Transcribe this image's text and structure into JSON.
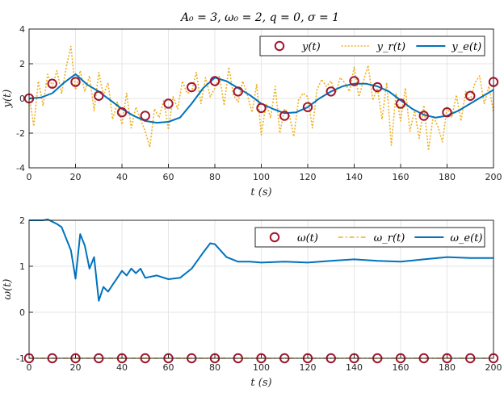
{
  "chart_data": [
    {
      "type": "line",
      "title": "A₀ = 3,  ω₀ = 2,  q = 0,  σ = 1",
      "xlabel": "t (s)",
      "ylabel": "y(t)",
      "xlim": [
        0,
        200
      ],
      "ylim": [
        -4,
        4
      ],
      "xticks": [
        0,
        20,
        40,
        60,
        80,
        100,
        120,
        140,
        160,
        180,
        200
      ],
      "yticks": [
        -4,
        -2,
        0,
        2,
        4
      ],
      "grid": true,
      "legend_position": "top-right",
      "series": [
        {
          "name": "y(t)",
          "style": "markers",
          "color": "#A2142F",
          "x": [
            0,
            10,
            20,
            30,
            40,
            50,
            60,
            70,
            80,
            90,
            100,
            110,
            120,
            130,
            140,
            150,
            160,
            170,
            180,
            190,
            200
          ],
          "y": [
            0.0,
            0.85,
            0.95,
            0.15,
            -0.8,
            -1.0,
            -0.3,
            0.65,
            1.0,
            0.4,
            -0.55,
            -1.0,
            -0.5,
            0.4,
            1.0,
            0.65,
            -0.3,
            -1.0,
            -0.8,
            0.15,
            0.95
          ]
        },
        {
          "name": "y_r(t)",
          "style": "dotted",
          "color": "#EDB120",
          "x": [
            0,
            2,
            4,
            6,
            8,
            10,
            12,
            14,
            16,
            18,
            20,
            22,
            24,
            26,
            28,
            30,
            32,
            34,
            36,
            38,
            40,
            42,
            44,
            46,
            48,
            50,
            52,
            54,
            56,
            58,
            60,
            62,
            64,
            66,
            68,
            70,
            72,
            74,
            76,
            78,
            80,
            82,
            84,
            86,
            88,
            90,
            92,
            94,
            96,
            98,
            100,
            102,
            104,
            106,
            108,
            110,
            112,
            114,
            116,
            118,
            120,
            122,
            124,
            126,
            128,
            130,
            132,
            134,
            136,
            138,
            140,
            142,
            144,
            146,
            148,
            150,
            152,
            154,
            156,
            158,
            160,
            162,
            164,
            166,
            168,
            170,
            172,
            174,
            176,
            178,
            180,
            182,
            184,
            186,
            188,
            190,
            192,
            194,
            196,
            198,
            200
          ],
          "y": [
            0.2,
            -1.6,
            1.0,
            -0.4,
            1.4,
            0.7,
            1.6,
            0.3,
            1.8,
            3.0,
            0.5,
            1.6,
            0.4,
            1.3,
            -0.7,
            1.5,
            0.2,
            0.9,
            -1.2,
            -0.2,
            -1.5,
            0.3,
            -1.7,
            -0.5,
            -1.2,
            -1.9,
            -2.8,
            -0.6,
            -1.1,
            -0.1,
            -1.8,
            0.1,
            -0.6,
            1.0,
            0.3,
            0.4,
            1.5,
            -0.3,
            1.2,
            0.1,
            0.6,
            1.3,
            -0.4,
            1.8,
            0.2,
            -0.2,
            1.0,
            0.2,
            -0.8,
            0.8,
            -2.1,
            -0.3,
            -1.1,
            0.7,
            -2.0,
            -0.6,
            -0.9,
            -2.2,
            -0.1,
            0.3,
            0.1,
            -1.7,
            0.5,
            1.1,
            0.7,
            1.0,
            0.3,
            1.2,
            0.9,
            0.4,
            1.8,
            0.1,
            1.0,
            1.9,
            -0.1,
            0.6,
            -1.2,
            0.9,
            -2.7,
            0.3,
            -1.3,
            0.6,
            -1.9,
            -0.7,
            -2.3,
            -0.4,
            -3.0,
            -1.0,
            -1.6,
            -2.5,
            -0.5,
            -1.1,
            0.2,
            -1.3,
            0.4,
            -0.1,
            0.9,
            1.3,
            -0.3,
            0.7,
            -0.8
          ]
        },
        {
          "name": "y_e(t)",
          "style": "solid",
          "color": "#0072BD",
          "x": [
            0,
            5,
            10,
            15,
            20,
            25,
            30,
            35,
            40,
            45,
            50,
            55,
            60,
            65,
            70,
            75,
            80,
            85,
            90,
            95,
            100,
            105,
            110,
            115,
            120,
            125,
            130,
            135,
            140,
            145,
            150,
            155,
            160,
            165,
            170,
            175,
            180,
            185,
            190,
            195,
            200
          ],
          "y": [
            0.0,
            0.05,
            0.3,
            0.9,
            1.4,
            0.8,
            0.4,
            -0.1,
            -0.6,
            -1.0,
            -1.3,
            -1.4,
            -1.35,
            -1.1,
            -0.3,
            0.6,
            1.2,
            1.0,
            0.6,
            0.2,
            -0.3,
            -0.6,
            -0.85,
            -0.8,
            -0.5,
            0.0,
            0.4,
            0.7,
            0.85,
            0.85,
            0.7,
            0.4,
            -0.1,
            -0.6,
            -0.95,
            -1.1,
            -1.0,
            -0.7,
            -0.3,
            0.1,
            0.5
          ]
        }
      ]
    },
    {
      "type": "line",
      "xlabel": "t (s)",
      "ylabel": "ω(t)",
      "xlim": [
        0,
        200
      ],
      "ylim": [
        -1,
        2
      ],
      "xticks": [
        0,
        20,
        40,
        60,
        80,
        100,
        120,
        140,
        160,
        180,
        200
      ],
      "yticks": [
        -1,
        0,
        1,
        2
      ],
      "grid": true,
      "legend_position": "top-right",
      "series": [
        {
          "name": "ω(t)",
          "style": "markers",
          "color": "#A2142F",
          "x": [
            0,
            10,
            20,
            30,
            40,
            50,
            60,
            70,
            80,
            90,
            100,
            110,
            120,
            130,
            140,
            150,
            160,
            170,
            180,
            190,
            200
          ],
          "y": [
            -1,
            -1,
            -1,
            -1,
            -1,
            -1,
            -1,
            -1,
            -1,
            -1,
            -1,
            -1,
            -1,
            -1,
            -1,
            -1,
            -1,
            -1,
            -1,
            -1,
            -1
          ]
        },
        {
          "name": "ω_r(t)",
          "style": "dash-dot",
          "color": "#EDB120",
          "x": [
            0,
            200
          ],
          "y": [
            -1,
            -1
          ]
        },
        {
          "name": "ω_e(t)",
          "style": "solid",
          "color": "#0072BD",
          "x": [
            0,
            2,
            4,
            6,
            8,
            10,
            12,
            14,
            16,
            18,
            20,
            22,
            24,
            26,
            28,
            30,
            32,
            34,
            36,
            38,
            40,
            42,
            44,
            46,
            48,
            50,
            55,
            60,
            65,
            70,
            75,
            78,
            80,
            85,
            90,
            95,
            100,
            110,
            120,
            130,
            140,
            150,
            160,
            170,
            180,
            190,
            200
          ],
          "y": [
            2.0,
            2.0,
            2.0,
            2.0,
            2.02,
            1.97,
            1.92,
            1.85,
            1.6,
            1.35,
            0.73,
            1.7,
            1.45,
            0.95,
            1.2,
            0.25,
            0.55,
            0.45,
            0.6,
            0.75,
            0.9,
            0.8,
            0.95,
            0.85,
            0.95,
            0.75,
            0.8,
            0.72,
            0.75,
            0.95,
            1.3,
            1.5,
            1.48,
            1.2,
            1.1,
            1.1,
            1.08,
            1.1,
            1.08,
            1.12,
            1.15,
            1.12,
            1.1,
            1.15,
            1.2,
            1.18,
            1.18
          ]
        }
      ]
    }
  ],
  "colors": {
    "y_marker": "#A2142F",
    "reference": "#EDB120",
    "estimate": "#0072BD",
    "grid": "#e6e6e6",
    "axes": "#262626"
  }
}
